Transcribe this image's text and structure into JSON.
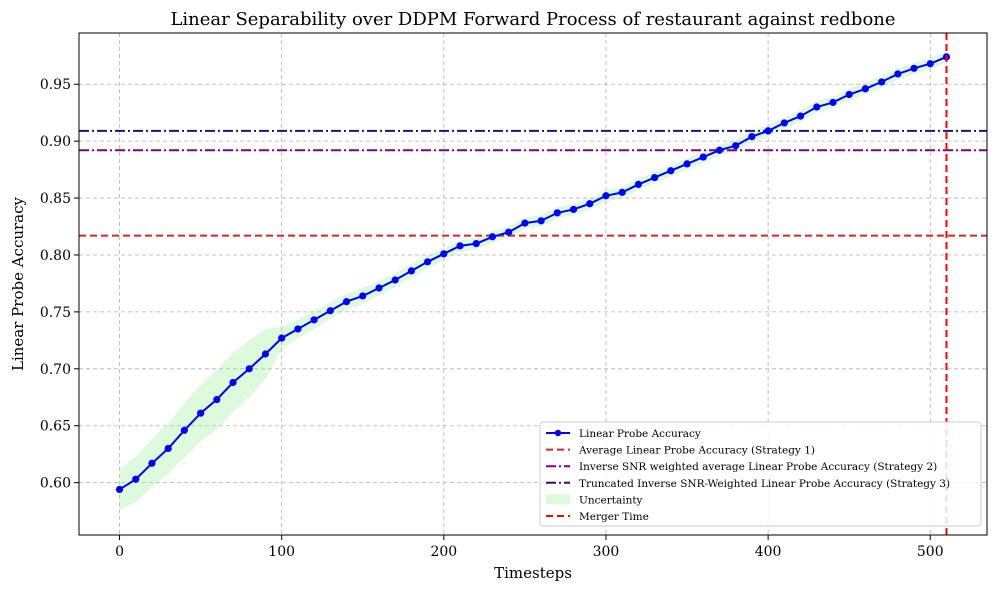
{
  "chart_data": {
    "type": "line",
    "title": "Linear Separability over DDPM Forward Process of restaurant against redbone",
    "xlabel": "Timesteps",
    "ylabel": "Linear Probe Accuracy",
    "xlim": [
      -25,
      535
    ],
    "ylim": [
      0.554,
      0.995
    ],
    "xticks": [
      0,
      100,
      200,
      300,
      400,
      500
    ],
    "xtick_labels": [
      "0",
      "100",
      "200",
      "300",
      "400",
      "500"
    ],
    "yticks": [
      0.6,
      0.65,
      0.7,
      0.75,
      0.8,
      0.85,
      0.9,
      0.95
    ],
    "ytick_labels": [
      "0.60",
      "0.65",
      "0.70",
      "0.75",
      "0.80",
      "0.85",
      "0.90",
      "0.95"
    ],
    "grid": true,
    "legend_position": "lower-right",
    "series": [
      {
        "name": "Linear Probe Accuracy",
        "color": "#0000ff",
        "x": [
          0,
          10,
          20,
          30,
          40,
          50,
          60,
          70,
          80,
          90,
          100,
          110,
          120,
          130,
          140,
          150,
          160,
          170,
          180,
          190,
          200,
          210,
          220,
          230,
          240,
          250,
          260,
          270,
          280,
          290,
          300,
          310,
          320,
          330,
          340,
          350,
          360,
          370,
          380,
          390,
          400,
          410,
          420,
          430,
          440,
          450,
          460,
          470,
          480,
          490,
          500,
          510
        ],
        "values": [
          0.594,
          0.603,
          0.617,
          0.63,
          0.646,
          0.661,
          0.673,
          0.688,
          0.7,
          0.713,
          0.727,
          0.735,
          0.743,
          0.751,
          0.759,
          0.764,
          0.771,
          0.778,
          0.786,
          0.794,
          0.801,
          0.808,
          0.81,
          0.816,
          0.82,
          0.828,
          0.83,
          0.837,
          0.84,
          0.845,
          0.852,
          0.855,
          0.862,
          0.868,
          0.874,
          0.88,
          0.886,
          0.892,
          0.896,
          0.904,
          0.909,
          0.916,
          0.922,
          0.93,
          0.934,
          0.941,
          0.946,
          0.952,
          0.959,
          0.964,
          0.968,
          0.974
        ],
        "uncertainty_half_width": [
          0.018,
          0.02,
          0.021,
          0.022,
          0.024,
          0.025,
          0.026,
          0.026,
          0.025,
          0.022,
          0.01,
          0.008,
          0.008,
          0.007,
          0.007,
          0.007,
          0.006,
          0.006,
          0.006,
          0.006,
          0.005,
          0.005,
          0.005,
          0.005,
          0.005,
          0.005,
          0.005,
          0.005,
          0.005,
          0.005,
          0.005,
          0.005,
          0.005,
          0.005,
          0.005,
          0.005,
          0.005,
          0.005,
          0.005,
          0.005,
          0.005,
          0.005,
          0.005,
          0.005,
          0.005,
          0.005,
          0.005,
          0.005,
          0.005,
          0.005,
          0.005,
          0.005
        ]
      }
    ],
    "hlines": [
      {
        "name": "Average Linear Probe Accuracy (Strategy 1)",
        "y": 0.817,
        "color": "#d62728",
        "style": "dashed"
      },
      {
        "name": "Inverse SNR weighted average Linear Probe Accuracy (Strategy 2)",
        "y": 0.892,
        "color": "#800080",
        "style": "dashdot"
      },
      {
        "name": "Truncated Inverse SNR-Weighted Linear Probe Accuracy (Strategy 3)",
        "y": 0.909,
        "color": "#191970",
        "style": "dashdot"
      }
    ],
    "vlines": [
      {
        "name": "Merger Time",
        "x": 510,
        "color": "#ff0000",
        "style": "dashed"
      }
    ],
    "uncertainty": {
      "name": "Uncertainty",
      "color": "#90ee90"
    },
    "legend": [
      "Linear Probe Accuracy",
      "Average Linear Probe Accuracy (Strategy 1)",
      "Inverse SNR weighted average Linear Probe Accuracy (Strategy 2)",
      "Truncated Inverse SNR-Weighted Linear Probe Accuracy (Strategy 3)",
      "Uncertainty",
      "Merger Time"
    ]
  }
}
